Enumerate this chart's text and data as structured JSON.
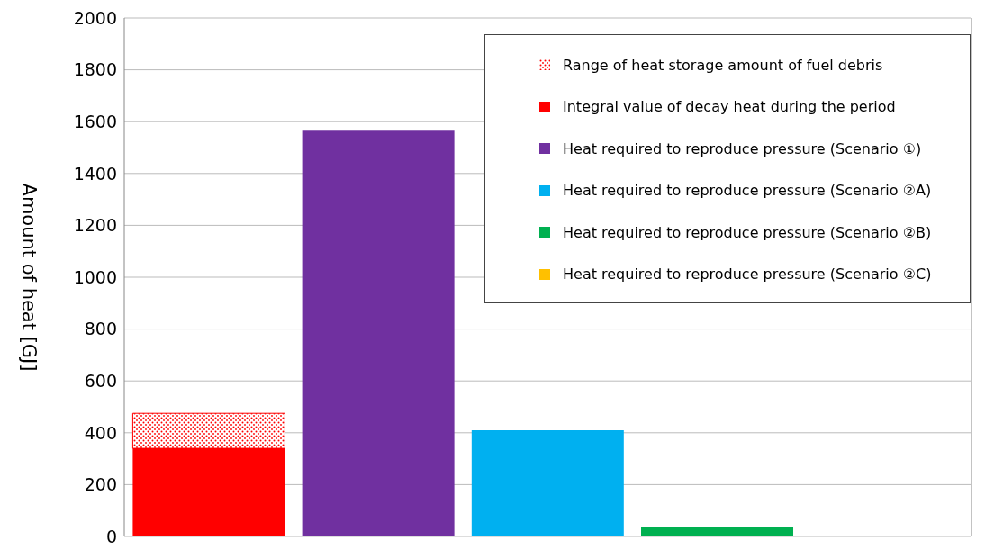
{
  "chart_data": {
    "type": "bar",
    "ylabel": "Amount of heat [GJ]",
    "categories": [
      null,
      null,
      null,
      null,
      null
    ],
    "series": [
      {
        "name": "Range of heat storage amount of fuel debris",
        "color": "#ff0000",
        "values": [
          135,
          null,
          null,
          null,
          null
        ],
        "base": [
          340,
          null,
          null,
          null,
          null
        ]
      },
      {
        "name": "Integral value of decay heat during the period",
        "color": "#ff0000",
        "values": [
          340,
          null,
          null,
          null,
          null
        ]
      },
      {
        "name": "Heat required to reproduce pressure (Scenario ①)",
        "color": "#7030a0",
        "values": [
          null,
          1565,
          null,
          null,
          null
        ]
      },
      {
        "name": "Heat required to reproduce pressure (Scenario ②A)",
        "color": "#00b0f0",
        "values": [
          null,
          null,
          410,
          null,
          null
        ]
      },
      {
        "name": "Heat required to reproduce pressure (Scenario ②B)",
        "color": "#00b050",
        "values": [
          null,
          null,
          null,
          38,
          null
        ]
      },
      {
        "name": "Heat required to reproduce pressure (Scenario ②C)",
        "color": "#ffc000",
        "values": [
          null,
          null,
          null,
          null,
          3
        ]
      }
    ],
    "ylim": [
      0,
      2000
    ],
    "yticks": [
      0,
      200,
      400,
      600,
      800,
      1000,
      1200,
      1400,
      1600,
      1800,
      2000
    ],
    "grid": "y",
    "legend": "top right"
  }
}
